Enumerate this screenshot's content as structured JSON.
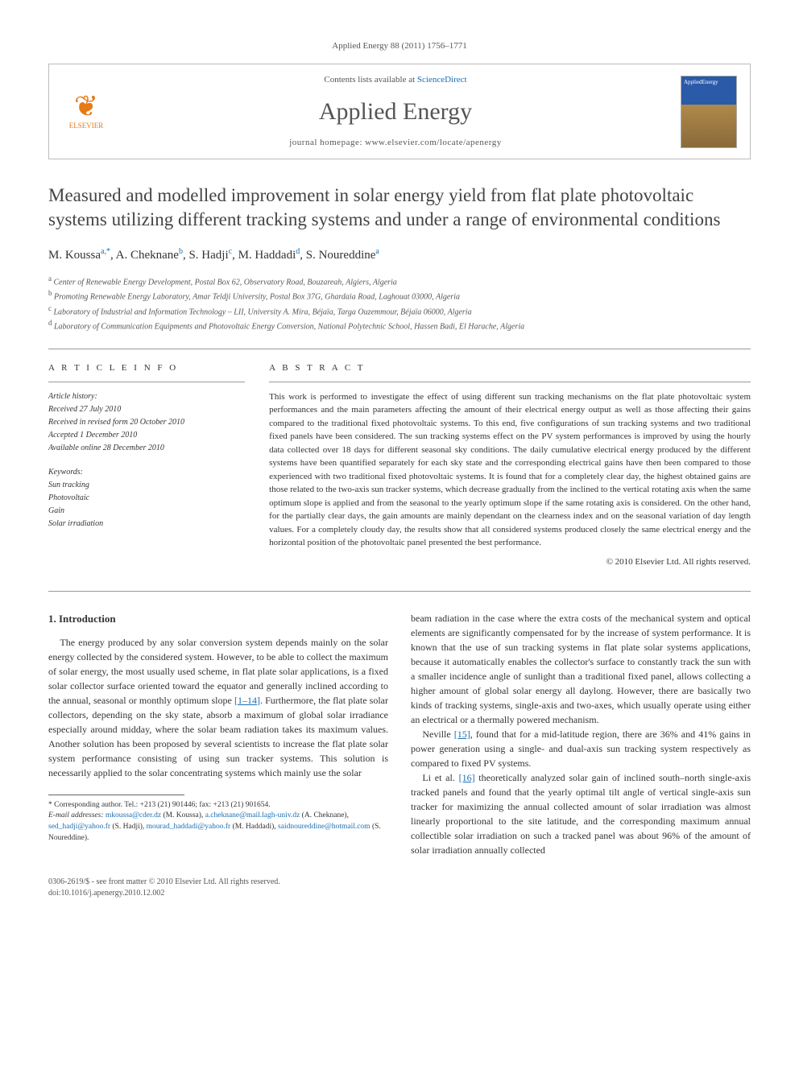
{
  "citation": "Applied Energy 88 (2011) 1756–1771",
  "header": {
    "contents_prefix": "Contents lists available at ",
    "contents_link": "ScienceDirect",
    "journal": "Applied Energy",
    "homepage_prefix": "journal homepage: ",
    "homepage_url": "www.elsevier.com/locate/apenergy",
    "publisher": "ELSEVIER",
    "cover_label": "AppliedEnergy"
  },
  "title": "Measured and modelled improvement in solar energy yield from flat plate photovoltaic systems utilizing different tracking systems and under a range of environmental conditions",
  "authors_html": "M. Koussa|a,*|, A. Cheknane|b|, S. Hadji|c|, M. Haddadi|d|, S. Noureddine|a|",
  "authors": [
    {
      "name": "M. Koussa",
      "sup": "a,*"
    },
    {
      "name": "A. Cheknane",
      "sup": "b"
    },
    {
      "name": "S. Hadji",
      "sup": "c"
    },
    {
      "name": "M. Haddadi",
      "sup": "d"
    },
    {
      "name": "S. Noureddine",
      "sup": "a"
    }
  ],
  "affiliations": [
    {
      "sup": "a",
      "text": "Center of Renewable Energy Development, Postal Box 62, Observatory Road, Bouzareah, Algiers, Algeria"
    },
    {
      "sup": "b",
      "text": "Promoting Renewable Energy Laboratory, Amar Teldji University, Postal Box 37G, Ghardaia Road, Laghouat 03000, Algeria"
    },
    {
      "sup": "c",
      "text": "Laboratory of Industrial and Information Technology – LII, University A. Mira, Béjaïa, Targa Ouzemmour, Béjaïa 06000, Algeria"
    },
    {
      "sup": "d",
      "text": "Laboratory of Communication Equipments and Photovoltaic Energy Conversion, National Polytechnic School, Hassen Badi, El Harache, Algeria"
    }
  ],
  "article_info": {
    "heading": "A R T I C L E   I N F O",
    "history_label": "Article history:",
    "history": [
      "Received 27 July 2010",
      "Received in revised form 20 October 2010",
      "Accepted 1 December 2010",
      "Available online 28 December 2010"
    ],
    "keywords_label": "Keywords:",
    "keywords": [
      "Sun tracking",
      "Photovoltaic",
      "Gain",
      "Solar irradiation"
    ]
  },
  "abstract": {
    "heading": "A B S T R A C T",
    "text": "This work is performed to investigate the effect of using different sun tracking mechanisms on the flat plate photovoltaic system performances and the main parameters affecting the amount of their electrical energy output as well as those affecting their gains compared to the traditional fixed photovoltaic systems. To this end, five configurations of sun tracking systems and two traditional fixed panels have been considered. The sun tracking systems effect on the PV system performances is improved by using the hourly data collected over 18 days for different seasonal sky conditions. The daily cumulative electrical energy produced by the different systems have been quantified separately for each sky state and the corresponding electrical gains have then been compared to those experienced with two traditional fixed photovoltaic systems. It is found that for a completely clear day, the highest obtained gains are those related to the two-axis sun tracker systems, which decrease gradually from the inclined to the vertical rotating axis when the same optimum slope is applied and from the seasonal to the yearly optimum slope if the same rotating axis is considered. On the other hand, for the partially clear days, the gain amounts are mainly dependant on the clearness index and on the seasonal variation of day length values. For a completely cloudy day, the results show that all considered systems produced closely the same electrical energy and the horizontal position of the photovoltaic panel presented the best performance.",
    "copyright": "© 2010 Elsevier Ltd. All rights reserved."
  },
  "intro": {
    "heading": "1. Introduction",
    "p1": "The energy produced by any solar conversion system depends mainly on the solar energy collected by the considered system. However, to be able to collect the maximum of solar energy, the most usually used scheme, in flat plate solar applications, is a fixed solar collector surface oriented toward the equator and generally inclined according to the annual, seasonal or monthly optimum slope ",
    "ref1": "[1–14]",
    "p1b": ". Furthermore, the flat plate solar collectors, depending on the sky state, absorb a maximum of global solar irradiance especially around midday, where the solar beam radiation takes its maximum values. Another solution has been proposed by several scientists to increase the flat plate solar system performance consisting of using sun tracker systems. This solution is necessarily applied to the solar concentrating systems which mainly use the solar",
    "p2a": "beam radiation in the case where the extra costs of the mechanical system and optical elements are significantly compensated for by the increase of system performance. It is known that the use of sun tracking systems in flat plate solar systems applications, because it automatically enables the collector's surface to constantly track the sun with a smaller incidence angle of sunlight than a traditional fixed panel, allows collecting a higher amount of global solar energy all daylong. However, there are basically two kinds of tracking systems, single-axis and two-axes, which usually operate using either an electrical or a thermally powered mechanism.",
    "p3a": "Neville ",
    "ref15": "[15]",
    "p3b": ", found that for a mid-latitude region, there are 36% and 41% gains in power generation using a single- and dual-axis sun tracking system respectively as compared to fixed PV systems.",
    "p4a": "Li et al. ",
    "ref16": "[16]",
    "p4b": " theoretically analyzed solar gain of inclined south–north single-axis tracked panels and found that the yearly optimal tilt angle of vertical single-axis sun tracker for maximizing the annual collected amount of solar irradiation was almost linearly proportional to the site latitude, and the corresponding maximum annual collectible solar irradiation on such a tracked panel was about 96% of the amount of solar irradiation annually collected"
  },
  "footnotes": {
    "corr": "* Corresponding author. Tel.: +213 (21) 901446; fax: +213 (21) 901654.",
    "email_label": "E-mail addresses: ",
    "emails": [
      {
        "addr": "mkoussa@cder.dz",
        "who": "(M. Koussa)"
      },
      {
        "addr": "a.cheknane@mail.lagh-univ.dz",
        "who": "(A. Cheknane)"
      },
      {
        "addr": "sed_hadji@yahoo.fr",
        "who": "(S. Hadji)"
      },
      {
        "addr": "mourad_haddadi@yahoo.fr",
        "who": "(M. Haddadi)"
      },
      {
        "addr": "saidnoureddine@hotmail.com",
        "who": "(S. Noureddine)"
      }
    ]
  },
  "footer": {
    "line1": "0306-2619/$ - see front matter © 2010 Elsevier Ltd. All rights reserved.",
    "line2": "doi:10.1016/j.apenergy.2010.12.002"
  },
  "colors": {
    "link": "#1a6fb3",
    "elsevier": "#e67a17",
    "rule": "#999999",
    "text": "#333333"
  }
}
